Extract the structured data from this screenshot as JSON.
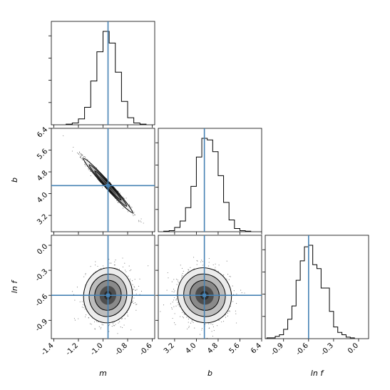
{
  "chart_data": {
    "type": "corner",
    "parameters": [
      {
        "key": "m",
        "label": "m",
        "range": [
          -1.42,
          -0.58
        ],
        "truth": -0.9594,
        "ticks": [
          "-1.4",
          "-1.2",
          "-1.0",
          "-0.8",
          "-0.6"
        ],
        "tick_values": [
          -1.4,
          -1.2,
          -1.0,
          -0.8,
          -0.6
        ]
      },
      {
        "key": "b",
        "label": "b",
        "range": [
          2.6,
          6.4
        ],
        "truth": 4.294,
        "ticks": [
          "3.2",
          "4.0",
          "4.8",
          "5.6",
          "6.4"
        ],
        "tick_values": [
          3.2,
          4.0,
          4.8,
          5.6,
          6.4
        ]
      },
      {
        "key": "lnf",
        "label": "ln f",
        "range": [
          -1.12,
          0.12
        ],
        "truth": -0.6,
        "ticks": [
          "-0.9",
          "-0.6",
          "-0.3",
          "0.0"
        ],
        "tick_values": [
          -0.9,
          -0.6,
          -0.3,
          0.0
        ]
      }
    ],
    "histograms": {
      "m": {
        "bin_edges": [
          -1.3,
          -1.25,
          -1.2,
          -1.15,
          -1.1,
          -1.05,
          -1.0,
          -0.95,
          -0.9,
          -0.85,
          -0.8,
          -0.75,
          -0.7,
          -0.65
        ],
        "counts": [
          1,
          3,
          10,
          30,
          75,
          125,
          160,
          140,
          90,
          40,
          12,
          3,
          1
        ]
      },
      "b": {
        "bin_edges": [
          2.8,
          3.0,
          3.2,
          3.4,
          3.6,
          3.8,
          4.0,
          4.2,
          4.4,
          4.6,
          4.8,
          5.0,
          5.2,
          5.4,
          5.6,
          5.8,
          6.0
        ],
        "counts": [
          1,
          2,
          8,
          20,
          45,
          85,
          140,
          175,
          172,
          150,
          105,
          55,
          22,
          6,
          2,
          1
        ]
      },
      "lnf": {
        "bin_edges": [
          -1.1,
          -1.05,
          -1.0,
          -0.95,
          -0.9,
          -0.85,
          -0.8,
          -0.75,
          -0.7,
          -0.65,
          -0.6,
          -0.55,
          -0.5,
          -0.45,
          -0.4,
          -0.35,
          -0.3,
          -0.25,
          -0.2,
          -0.15,
          -0.1,
          -0.05
        ],
        "counts": [
          1,
          1,
          3,
          5,
          12,
          25,
          42,
          75,
          100,
          118,
          120,
          95,
          90,
          65,
          65,
          35,
          15,
          8,
          5,
          2,
          1
        ]
      }
    },
    "pairs": [
      {
        "x": "m",
        "y": "b",
        "mean": [
          -0.96,
          4.3
        ],
        "sd": [
          0.09,
          0.45
        ],
        "corr": -0.985
      },
      {
        "x": "m",
        "y": "lnf",
        "mean": [
          -0.96,
          -0.6
        ],
        "sd": [
          0.09,
          0.15
        ],
        "corr": 0.05
      },
      {
        "x": "b",
        "y": "lnf",
        "mean": [
          4.3,
          -0.6
        ],
        "sd": [
          0.45,
          0.15
        ],
        "corr": -0.05
      }
    ],
    "colors": {
      "hist": "#000000",
      "truth": "#4682b4",
      "contour_fill": [
        "#ececec",
        "#bdbdbd",
        "#8a8a8a",
        "#4d4d4d",
        "#2a2a2a"
      ],
      "points": "#000000"
    },
    "xlabel_row": [
      "m",
      "b",
      "ln f"
    ],
    "ylabel_col": [
      "",
      "b",
      "ln f"
    ]
  }
}
